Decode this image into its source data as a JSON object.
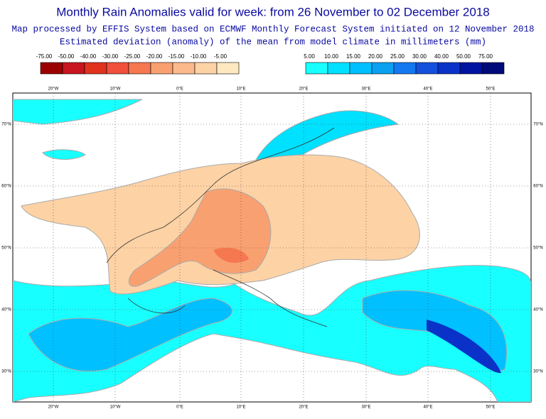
{
  "header": {
    "title": "Monthly Rain Anomalies valid for week: from 26 November to 02 December 2018",
    "subtitle": "Map processed by EFFIS System based on ECMWF Monthly Forecast System initiated on 12 November 2018",
    "description": "Estimated deviation (anomaly) of the mean from model climate in millimeters (mm)"
  },
  "legend": {
    "negative": {
      "labels": [
        "-75.00",
        "-50.00",
        "-40.00",
        "-30.00",
        "-25.00",
        "-20.00",
        "-15.00",
        "-10.00",
        "-5.00"
      ],
      "colors": [
        "#9b0000",
        "#c8141e",
        "#e1321e",
        "#f0503c",
        "#f57850",
        "#f9a070",
        "#fbb98c",
        "#fdd2a5",
        "#fee8c0"
      ]
    },
    "positive": {
      "labels": [
        "5.00",
        "10.00",
        "15.00",
        "20.00",
        "25.00",
        "30.00",
        "40.00",
        "50.00",
        "75.00"
      ],
      "colors": [
        "#18ffff",
        "#00e0ff",
        "#00c0ff",
        "#0aa0f0",
        "#1478f0",
        "#1450dc",
        "#0a32c8",
        "#0014a0",
        "#000a78"
      ]
    }
  },
  "map": {
    "lon_labels": [
      "20°W",
      "10°W",
      "0°E",
      "10°E",
      "20°E",
      "30°E",
      "40°E",
      "50°E"
    ],
    "lat_labels": [
      "70°N",
      "60°N",
      "50°N",
      "40°N",
      "30°N"
    ]
  }
}
